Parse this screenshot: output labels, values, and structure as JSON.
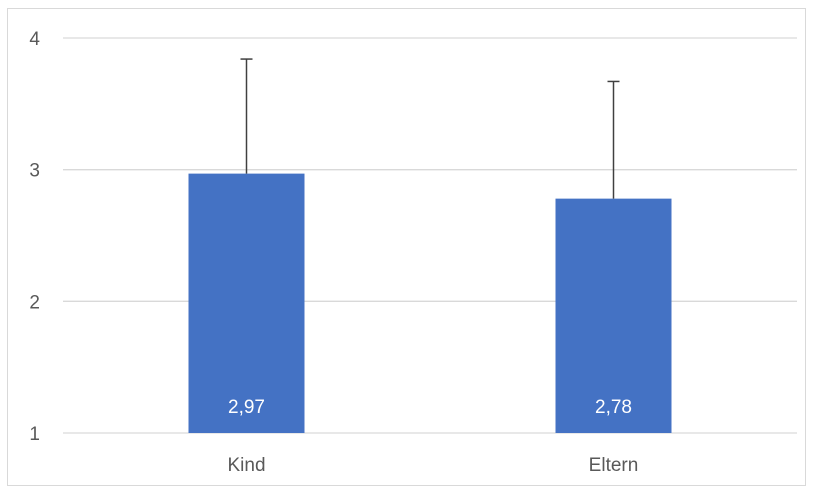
{
  "chart_data": {
    "type": "bar",
    "categories": [
      "Kind",
      "Eltern"
    ],
    "values": [
      2.97,
      2.78
    ],
    "value_labels": [
      "2,97",
      "2,78"
    ],
    "error_upper": [
      3.84,
      3.67
    ],
    "ylim": [
      1,
      4
    ],
    "yticks": [
      1,
      2,
      3,
      4
    ],
    "ytick_labels": [
      "1",
      "2",
      "3",
      "4"
    ],
    "title": "",
    "xlabel": "",
    "ylabel": "",
    "grid": true,
    "legend": "none",
    "bar_color": "#4472c4",
    "error_bar_color": "#404040",
    "grid_color": "#d9d9d9"
  }
}
